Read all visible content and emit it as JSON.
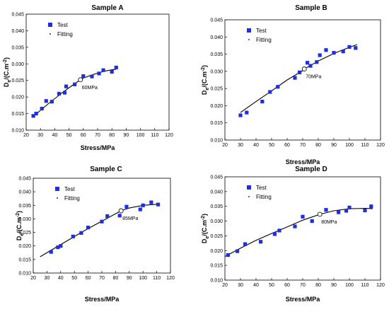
{
  "chart_data": [
    {
      "type": "scatter",
      "title": "Sample A",
      "xlabel": "Stress/MPa",
      "ylabel_main": "D",
      "ylabel_sub": "e",
      "ylabel_rest": "/(C.m",
      "ylabel_sup": "-2",
      "ylabel_end": ")",
      "xlim": [
        20,
        120
      ],
      "ylim": [
        0.01,
        0.045
      ],
      "xticks": [
        20,
        30,
        40,
        50,
        60,
        70,
        80,
        90,
        100,
        110,
        120
      ],
      "yticks": [
        "0.010",
        "0.015",
        "0.020",
        "0.025",
        "0.030",
        "0.035",
        "0.040",
        "0.045"
      ],
      "legend": [
        "Test",
        "Fitting"
      ],
      "annotation": {
        "text": "60MPa",
        "x": 58,
        "y": 0.0252
      },
      "series": [
        {
          "name": "Test",
          "x": [
            25,
            27,
            31,
            34,
            38,
            43,
            47,
            48,
            54,
            60,
            66,
            71,
            74,
            80,
            83
          ],
          "y": [
            0.0143,
            0.015,
            0.0165,
            0.0188,
            0.0186,
            0.021,
            0.0213,
            0.0232,
            0.0238,
            0.0263,
            0.0262,
            0.0271,
            0.0281,
            0.0276,
            0.0289
          ]
        },
        {
          "name": "Fitting",
          "x": [
            25,
            30,
            35,
            40,
            45,
            50,
            55,
            58,
            60,
            65,
            70,
            75,
            80,
            83
          ],
          "y": [
            0.014,
            0.016,
            0.0178,
            0.0195,
            0.0212,
            0.0228,
            0.0243,
            0.0252,
            0.0257,
            0.0265,
            0.0272,
            0.0278,
            0.0282,
            0.0284
          ]
        }
      ]
    },
    {
      "type": "scatter",
      "title": "Sample B",
      "xlabel": "Stress/MPa",
      "ylabel_main": "D",
      "ylabel_sub": "e",
      "ylabel_rest": "/(C.m",
      "ylabel_sup": "-2",
      "ylabel_end": ")",
      "xlim": [
        20,
        120
      ],
      "ylim": [
        0.01,
        0.045
      ],
      "xticks": [
        20,
        30,
        40,
        50,
        60,
        70,
        80,
        90,
        100,
        110,
        120
      ],
      "yticks": [
        "0.010",
        "0.015",
        "0.020",
        "0.025",
        "0.030",
        "0.035",
        "0.040",
        "0.045"
      ],
      "legend": [
        "Test",
        "Fitting"
      ],
      "annotation": {
        "text": "70MPa",
        "x": 71,
        "y": 0.0307
      },
      "series": [
        {
          "name": "Test",
          "x": [
            30,
            34,
            44,
            49,
            54,
            65,
            68,
            73,
            75,
            79,
            81,
            85,
            90,
            96,
            100,
            104
          ],
          "y": [
            0.0172,
            0.018,
            0.0212,
            0.024,
            0.0255,
            0.0281,
            0.0297,
            0.0325,
            0.0316,
            0.0327,
            0.0347,
            0.0362,
            0.0354,
            0.0358,
            0.0371,
            0.0368
          ]
        },
        {
          "name": "Fitting",
          "x": [
            30,
            40,
            50,
            60,
            70,
            71,
            80,
            90,
            100,
            105
          ],
          "y": [
            0.018,
            0.0212,
            0.0243,
            0.0275,
            0.0302,
            0.0307,
            0.033,
            0.0352,
            0.037,
            0.0378
          ]
        }
      ]
    },
    {
      "type": "scatter",
      "title": "Sample C",
      "xlabel": "Stress/MPa",
      "ylabel_main": "D",
      "ylabel_sub": "e",
      "ylabel_rest": "/(C.m",
      "ylabel_sup": "-2",
      "ylabel_end": ")",
      "xlim": [
        20,
        120
      ],
      "ylim": [
        0.01,
        0.045
      ],
      "xticks": [
        20,
        30,
        40,
        50,
        60,
        70,
        80,
        90,
        100,
        110,
        120
      ],
      "yticks": [
        "0.010",
        "0.015",
        "0.020",
        "0.025",
        "0.030",
        "0.035",
        "0.040",
        "0.045"
      ],
      "legend": [
        "Test",
        "Fitting"
      ],
      "annotation": {
        "text": "85MPa",
        "x": 84,
        "y": 0.033
      },
      "series": [
        {
          "name": "Test",
          "x": [
            33,
            38,
            40,
            49,
            55,
            60,
            70,
            74,
            83,
            88,
            98,
            100,
            106,
            111
          ],
          "y": [
            0.0178,
            0.0195,
            0.02,
            0.0235,
            0.0248,
            0.0268,
            0.029,
            0.031,
            0.0312,
            0.0345,
            0.0335,
            0.035,
            0.0361,
            0.0353
          ]
        },
        {
          "name": "Fitting",
          "x": [
            25,
            35,
            45,
            55,
            65,
            75,
            84,
            90,
            100,
            110,
            112
          ],
          "y": [
            0.016,
            0.019,
            0.022,
            0.025,
            0.0278,
            0.0305,
            0.033,
            0.034,
            0.035,
            0.0354,
            0.0354
          ]
        }
      ]
    },
    {
      "type": "scatter",
      "title": "Sample D",
      "xlabel": "Stress/MPa",
      "ylabel_main": "D",
      "ylabel_sub": "e",
      "ylabel_rest": "/(C.m",
      "ylabel_sup": "-2",
      "ylabel_end": ")",
      "xlim": [
        20,
        120
      ],
      "ylim": [
        0.01,
        0.045
      ],
      "xticks": [
        20,
        30,
        40,
        50,
        60,
        70,
        80,
        90,
        100,
        110,
        120
      ],
      "yticks": [
        "0.010",
        "0.015",
        "0.020",
        "0.025",
        "0.030",
        "0.035",
        "0.040",
        "0.045"
      ],
      "legend": [
        "Test",
        "Fitting"
      ],
      "annotation": {
        "text": "80MPa",
        "x": 81,
        "y": 0.0323
      },
      "series": [
        {
          "name": "Test",
          "x": [
            22,
            28,
            33,
            43,
            52,
            55,
            65,
            70,
            76,
            85,
            93,
            98,
            100,
            110,
            114
          ],
          "y": [
            0.0185,
            0.0198,
            0.0222,
            0.023,
            0.0256,
            0.0268,
            0.0282,
            0.0315,
            0.03,
            0.0338,
            0.033,
            0.0335,
            0.0346,
            0.0336,
            0.035
          ]
        },
        {
          "name": "Fitting",
          "x": [
            20,
            30,
            40,
            50,
            60,
            70,
            81,
            90,
            100,
            110,
            115
          ],
          "y": [
            0.018,
            0.0208,
            0.0235,
            0.0258,
            0.028,
            0.0303,
            0.0323,
            0.0335,
            0.0342,
            0.0343,
            0.0342
          ]
        }
      ]
    }
  ],
  "colors": {
    "marker": "#1f2fdc",
    "line": "#000000",
    "open_marker": "#ffffff"
  }
}
